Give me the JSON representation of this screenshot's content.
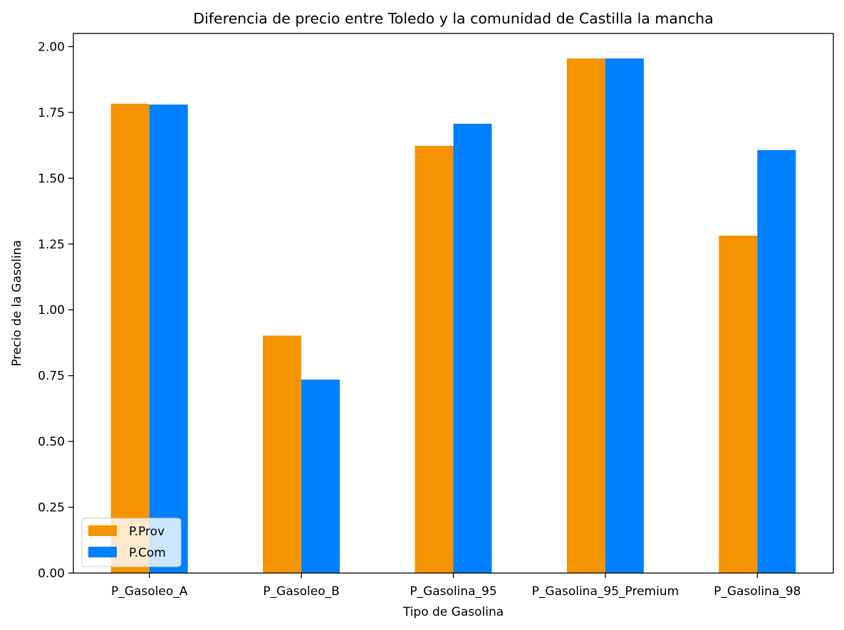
{
  "chart_data": {
    "type": "bar",
    "title": "Diferencia de precio entre Toledo y la comunidad de Castilla la mancha",
    "xlabel": "Tipo de Gasolina",
    "ylabel": "Precio de la Gasolina",
    "categories": [
      "P_Gasoleo_A",
      "P_Gasoleo_B",
      "P_Gasolina_95",
      "P_Gasolina_95_Premium",
      "P_Gasolina_98"
    ],
    "series": [
      {
        "name": "P.Prov",
        "color": "#f59300",
        "values": [
          1.783,
          0.902,
          1.623,
          1.955,
          1.282
        ]
      },
      {
        "name": "P.Com",
        "color": "#0080ff",
        "values": [
          1.78,
          0.735,
          1.707,
          1.955,
          1.607
        ]
      }
    ],
    "ylim": [
      0,
      2.05
    ],
    "yticks": [
      0.0,
      0.25,
      0.5,
      0.75,
      1.0,
      1.25,
      1.5,
      1.75,
      2.0
    ],
    "ytick_labels": [
      "0.00",
      "0.25",
      "0.50",
      "0.75",
      "1.00",
      "1.25",
      "1.50",
      "1.75",
      "2.00"
    ],
    "grid": false,
    "legend": "lower-left"
  }
}
